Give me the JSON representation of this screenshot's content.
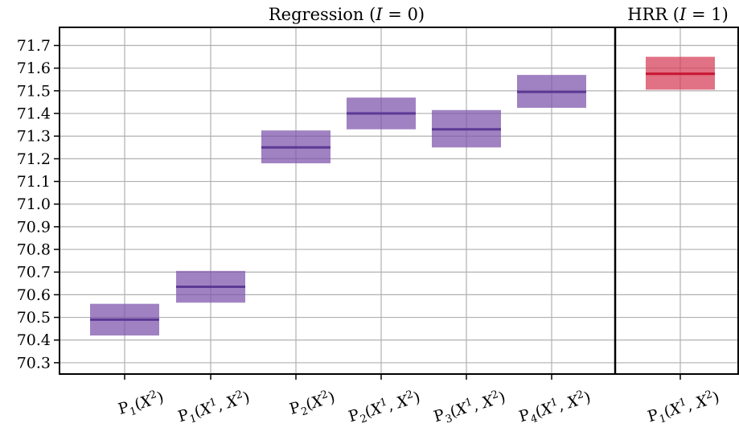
{
  "chart_data": {
    "type": "box",
    "ylim": [
      70.25,
      71.78
    ],
    "yticks": [
      "70.3",
      "70.4",
      "70.5",
      "70.6",
      "70.7",
      "70.8",
      "70.9",
      "71.0",
      "71.1",
      "71.2",
      "71.3",
      "71.4",
      "71.5",
      "71.6",
      "71.7"
    ],
    "grid": true,
    "panels": [
      {
        "title": "Regression (I = 0)",
        "color": "#7b52ab",
        "median_color": "#5b3a94",
        "categories": [
          {
            "label": "P1(X^2)",
            "low": 70.42,
            "median": 70.49,
            "high": 70.56
          },
          {
            "label": "P1(X^1, X^2)",
            "low": 70.565,
            "median": 70.635,
            "high": 70.705
          },
          {
            "label": "P2(X^2)",
            "low": 71.18,
            "median": 71.25,
            "high": 71.325
          },
          {
            "label": "P2(X^1, X^2)",
            "low": 71.33,
            "median": 71.4,
            "high": 71.47
          },
          {
            "label": "P3(X^1, X^2)",
            "low": 71.25,
            "median": 71.33,
            "high": 71.415
          },
          {
            "label": "P4(X^1, X^2)",
            "low": 71.425,
            "median": 71.495,
            "high": 71.57
          }
        ]
      },
      {
        "title": "HRR (I = 1)",
        "color": "#d63a55",
        "median_color": "#c81432",
        "categories": [
          {
            "label": "P1(X^1, X^2)",
            "low": 71.505,
            "median": 71.575,
            "high": 71.65
          }
        ]
      }
    ]
  }
}
